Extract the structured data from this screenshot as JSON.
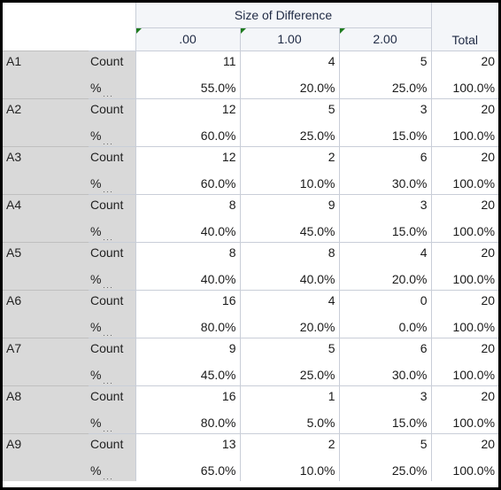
{
  "header": {
    "span_label": "Size of Difference",
    "columns": [
      ".00",
      "1.00",
      "2.00"
    ],
    "total_label": "Total"
  },
  "rows": [
    {
      "label": "A1",
      "count_label": "Count",
      "pct_label": "%",
      "counts": [
        "11",
        "4",
        "5",
        "20"
      ],
      "pcts": [
        "55.0%",
        "20.0%",
        "25.0%",
        "100.0%"
      ]
    },
    {
      "label": "A2",
      "count_label": "Count",
      "pct_label": "%",
      "counts": [
        "12",
        "5",
        "3",
        "20"
      ],
      "pcts": [
        "60.0%",
        "25.0%",
        "15.0%",
        "100.0%"
      ]
    },
    {
      "label": "A3",
      "count_label": "Count",
      "pct_label": "%",
      "counts": [
        "12",
        "2",
        "6",
        "20"
      ],
      "pcts": [
        "60.0%",
        "10.0%",
        "30.0%",
        "100.0%"
      ]
    },
    {
      "label": "A4",
      "count_label": "Count",
      "pct_label": "%",
      "counts": [
        "8",
        "9",
        "3",
        "20"
      ],
      "pcts": [
        "40.0%",
        "45.0%",
        "15.0%",
        "100.0%"
      ]
    },
    {
      "label": "A5",
      "count_label": "Count",
      "pct_label": "%",
      "counts": [
        "8",
        "8",
        "4",
        "20"
      ],
      "pcts": [
        "40.0%",
        "40.0%",
        "20.0%",
        "100.0%"
      ]
    },
    {
      "label": "A6",
      "count_label": "Count",
      "pct_label": "%",
      "counts": [
        "16",
        "4",
        "0",
        "20"
      ],
      "pcts": [
        "80.0%",
        "20.0%",
        "0.0%",
        "100.0%"
      ]
    },
    {
      "label": "A7",
      "count_label": "Count",
      "pct_label": "%",
      "counts": [
        "9",
        "5",
        "6",
        "20"
      ],
      "pcts": [
        "45.0%",
        "25.0%",
        "30.0%",
        "100.0%"
      ]
    },
    {
      "label": "A8",
      "count_label": "Count",
      "pct_label": "%",
      "counts": [
        "16",
        "1",
        "3",
        "20"
      ],
      "pcts": [
        "80.0%",
        "5.0%",
        "15.0%",
        "100.0%"
      ]
    },
    {
      "label": "A9",
      "count_label": "Count",
      "pct_label": "%",
      "counts": [
        "13",
        "2",
        "5",
        "20"
      ],
      "pcts": [
        "65.0%",
        "10.0%",
        "25.0%",
        "100.0%"
      ]
    }
  ]
}
